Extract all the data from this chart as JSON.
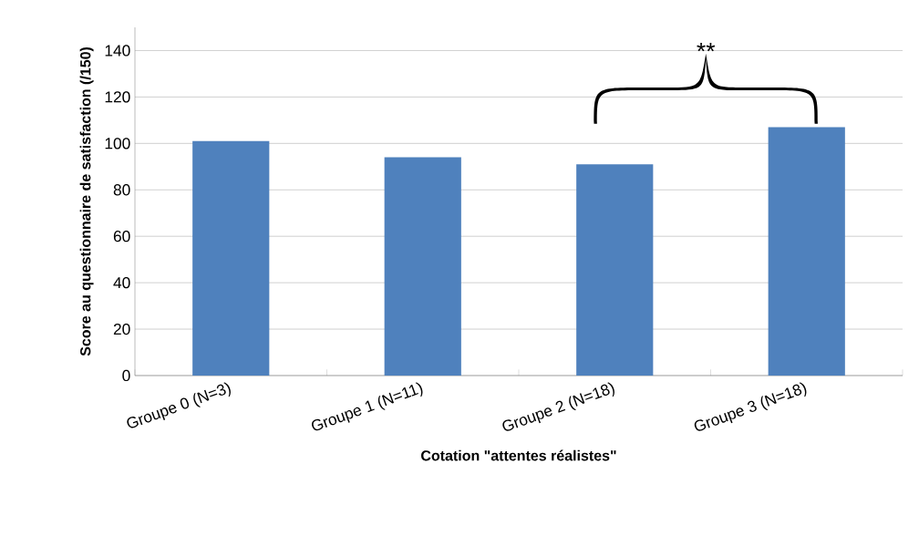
{
  "chart_data": {
    "type": "bar",
    "xlabel": "Cotation \"attentes réalistes\"",
    "ylabel": "Score au questionnaire de satisfaction (/150)",
    "categories": [
      "Groupe 0 (N=3)",
      "Groupe 1 (N=11)",
      "Groupe 2 (N=18)",
      "Groupe 3 (N=18)"
    ],
    "values": [
      101,
      94,
      91,
      107
    ],
    "color": "#4f81bd",
    "ylim": [
      0,
      150
    ],
    "yticks": [
      0,
      20,
      40,
      60,
      80,
      100,
      120,
      140
    ],
    "grid": "y",
    "annotations": [
      "**"
    ]
  }
}
